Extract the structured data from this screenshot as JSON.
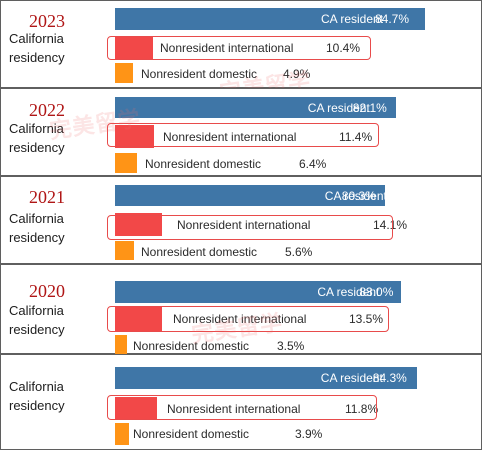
{
  "chart_data": [
    {
      "type": "bar",
      "title": "2023",
      "subtitle": "California residency",
      "categories": [
        "CA resident",
        "Nonresident international",
        "Nonresident domestic"
      ],
      "values": [
        84.7,
        10.4,
        4.9
      ],
      "value_labels": [
        "84.7%",
        "10.4%",
        "4.9%"
      ],
      "colors": [
        "#3f76a7",
        "#f24848",
        "#ff9416"
      ],
      "highlighted_category": "Nonresident international",
      "xlim": [
        0,
        100
      ]
    },
    {
      "type": "bar",
      "title": "2022",
      "subtitle": "California residency",
      "categories": [
        "CA resident",
        "Nonresident international",
        "Nonresident domestic"
      ],
      "values": [
        82.1,
        11.4,
        6.4
      ],
      "value_labels": [
        "82.1%",
        "11.4%",
        "6.4%"
      ],
      "colors": [
        "#3f76a7",
        "#f24848",
        "#ff9416"
      ],
      "highlighted_category": "Nonresident international",
      "xlim": [
        0,
        100
      ]
    },
    {
      "type": "bar",
      "title": "2021",
      "subtitle": "California residency",
      "categories": [
        "CA resident",
        "Nonresident international",
        "Nonresident domestic"
      ],
      "values": [
        80.3,
        14.1,
        5.6
      ],
      "value_labels": [
        "80.3%",
        "14.1%",
        "5.6%"
      ],
      "colors": [
        "#3f76a7",
        "#f24848",
        "#ff9416"
      ],
      "highlighted_category": "Nonresident international",
      "xlim": [
        0,
        100
      ]
    },
    {
      "type": "bar",
      "title": "2020",
      "subtitle": "California residency",
      "categories": [
        "CA resident",
        "Nonresident international",
        "Nonresident domestic"
      ],
      "values": [
        83.0,
        13.5,
        3.5
      ],
      "value_labels": [
        "83.0%",
        "13.5%",
        "3.5%"
      ],
      "colors": [
        "#3f76a7",
        "#f24848",
        "#ff9416"
      ],
      "highlighted_category": "Nonresident international",
      "xlim": [
        0,
        100
      ]
    },
    {
      "type": "bar",
      "title": "",
      "subtitle": "California residency",
      "categories": [
        "CA resident",
        "Nonresident international",
        "Nonresident domestic"
      ],
      "values": [
        84.3,
        11.8,
        3.9
      ],
      "value_labels": [
        "84.3%",
        "11.8%",
        "3.9%"
      ],
      "colors": [
        "#3f76a7",
        "#f24848",
        "#ff9416"
      ],
      "highlighted_category": "Nonresident international",
      "xlim": [
        0,
        100
      ]
    }
  ],
  "watermark_text": "完美留学"
}
